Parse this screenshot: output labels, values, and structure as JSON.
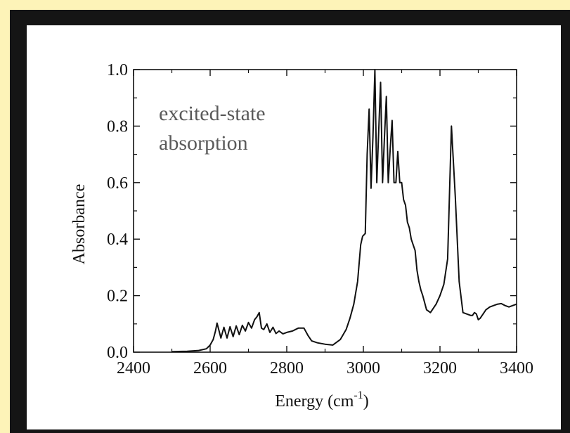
{
  "chart_data": {
    "type": "line",
    "title": "",
    "xlabel": "Energy (cm",
    "xlabel_sup": "-1",
    "xlabel_suffix": ")",
    "ylabel": "Absorbance",
    "xlim": [
      2400,
      3400
    ],
    "ylim": [
      0.0,
      1.0
    ],
    "xticks": [
      2400,
      2600,
      2800,
      3000,
      3200,
      3400
    ],
    "xtick_labels": [
      "2400",
      "2600",
      "2800",
      "3000",
      "3200",
      "3400"
    ],
    "yticks": [
      0.0,
      0.2,
      0.4,
      0.6,
      0.8,
      1.0
    ],
    "ytick_labels": [
      "0.0",
      "0.2",
      "0.4",
      "0.6",
      "0.8",
      "1.0"
    ],
    "grid": false,
    "annotation": [
      "excited-state",
      "absorption"
    ],
    "series": [
      {
        "color": "#111111",
        "x": [
          2500,
          2540,
          2570,
          2590,
          2600,
          2608,
          2614,
          2618,
          2622,
          2628,
          2636,
          2644,
          2652,
          2660,
          2668,
          2676,
          2684,
          2692,
          2700,
          2708,
          2716,
          2722,
          2728,
          2734,
          2740,
          2748,
          2756,
          2764,
          2772,
          2780,
          2790,
          2800,
          2815,
          2830,
          2845,
          2855,
          2865,
          2880,
          2900,
          2920,
          2940,
          2955,
          2965,
          2975,
          2985,
          2993,
          2998,
          3005,
          3010,
          3015,
          3020,
          3025,
          3030,
          3035,
          3040,
          3045,
          3050,
          3055,
          3060,
          3065,
          3070,
          3075,
          3080,
          3085,
          3090,
          3095,
          3100,
          3105,
          3110,
          3115,
          3120,
          3125,
          3130,
          3135,
          3140,
          3145,
          3150,
          3155,
          3160,
          3165,
          3170,
          3175,
          3180,
          3190,
          3200,
          3210,
          3220,
          3230,
          3240,
          3250,
          3260,
          3270,
          3280,
          3285,
          3290,
          3295,
          3300,
          3305,
          3310,
          3315,
          3320,
          3330,
          3340,
          3350,
          3360,
          3370,
          3380,
          3390,
          3400
        ],
        "y": [
          0.002,
          0.003,
          0.006,
          0.012,
          0.025,
          0.045,
          0.075,
          0.103,
          0.082,
          0.05,
          0.088,
          0.05,
          0.09,
          0.055,
          0.093,
          0.062,
          0.095,
          0.075,
          0.105,
          0.085,
          0.115,
          0.125,
          0.14,
          0.085,
          0.08,
          0.1,
          0.07,
          0.088,
          0.066,
          0.075,
          0.065,
          0.07,
          0.075,
          0.085,
          0.085,
          0.06,
          0.04,
          0.033,
          0.028,
          0.025,
          0.045,
          0.08,
          0.12,
          0.17,
          0.25,
          0.38,
          0.41,
          0.42,
          0.7,
          0.86,
          0.58,
          0.76,
          1.0,
          0.6,
          0.78,
          0.955,
          0.6,
          0.76,
          0.905,
          0.6,
          0.72,
          0.82,
          0.6,
          0.6,
          0.71,
          0.6,
          0.6,
          0.54,
          0.52,
          0.46,
          0.44,
          0.4,
          0.38,
          0.36,
          0.29,
          0.25,
          0.22,
          0.2,
          0.175,
          0.15,
          0.145,
          0.14,
          0.15,
          0.17,
          0.2,
          0.24,
          0.33,
          0.8,
          0.55,
          0.25,
          0.14,
          0.135,
          0.13,
          0.13,
          0.14,
          0.135,
          0.115,
          0.12,
          0.13,
          0.14,
          0.15,
          0.16,
          0.165,
          0.17,
          0.172,
          0.165,
          0.16,
          0.165,
          0.17
        ]
      }
    ]
  }
}
